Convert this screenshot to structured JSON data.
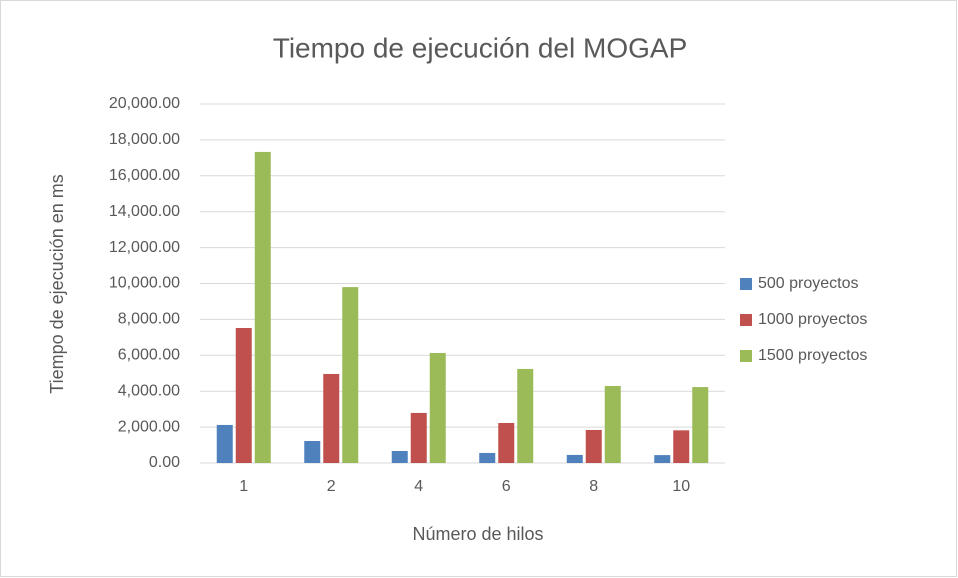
{
  "chart_data": {
    "type": "bar",
    "title": "Tiempo de ejecución del MOGAP",
    "x_label": "Número de hilos",
    "y_label": "Tiempo de ejecución en ms",
    "categories": [
      "1",
      "2",
      "4",
      "6",
      "8",
      "10"
    ],
    "series": [
      {
        "name": "500 proyectos",
        "color": "#4f81bd",
        "values": [
          2120,
          1225,
          670,
          560,
          450,
          440
        ]
      },
      {
        "name": "1000 proyectos",
        "color": "#c0504d",
        "values": [
          7520,
          4960,
          2790,
          2230,
          1840,
          1820
        ]
      },
      {
        "name": "1500 proyectos",
        "color": "#9bbb59",
        "values": [
          17330,
          9800,
          6130,
          5240,
          4290,
          4230
        ]
      }
    ],
    "ylim": [
      0,
      20000
    ],
    "yticks": [
      {
        "value": 0,
        "label": "0.00"
      },
      {
        "value": 2000,
        "label": "2,000.00"
      },
      {
        "value": 4000,
        "label": "4,000.00"
      },
      {
        "value": 6000,
        "label": "6,000.00"
      },
      {
        "value": 8000,
        "label": "8,000.00"
      },
      {
        "value": 10000,
        "label": "10,000.00"
      },
      {
        "value": 12000,
        "label": "12,000.00"
      },
      {
        "value": 14000,
        "label": "14,000.00"
      },
      {
        "value": 16000,
        "label": "16,000.00"
      },
      {
        "value": 18000,
        "label": "18,000.00"
      },
      {
        "value": 20000,
        "label": "20,000.00"
      }
    ],
    "grid": true,
    "legend": "right"
  }
}
